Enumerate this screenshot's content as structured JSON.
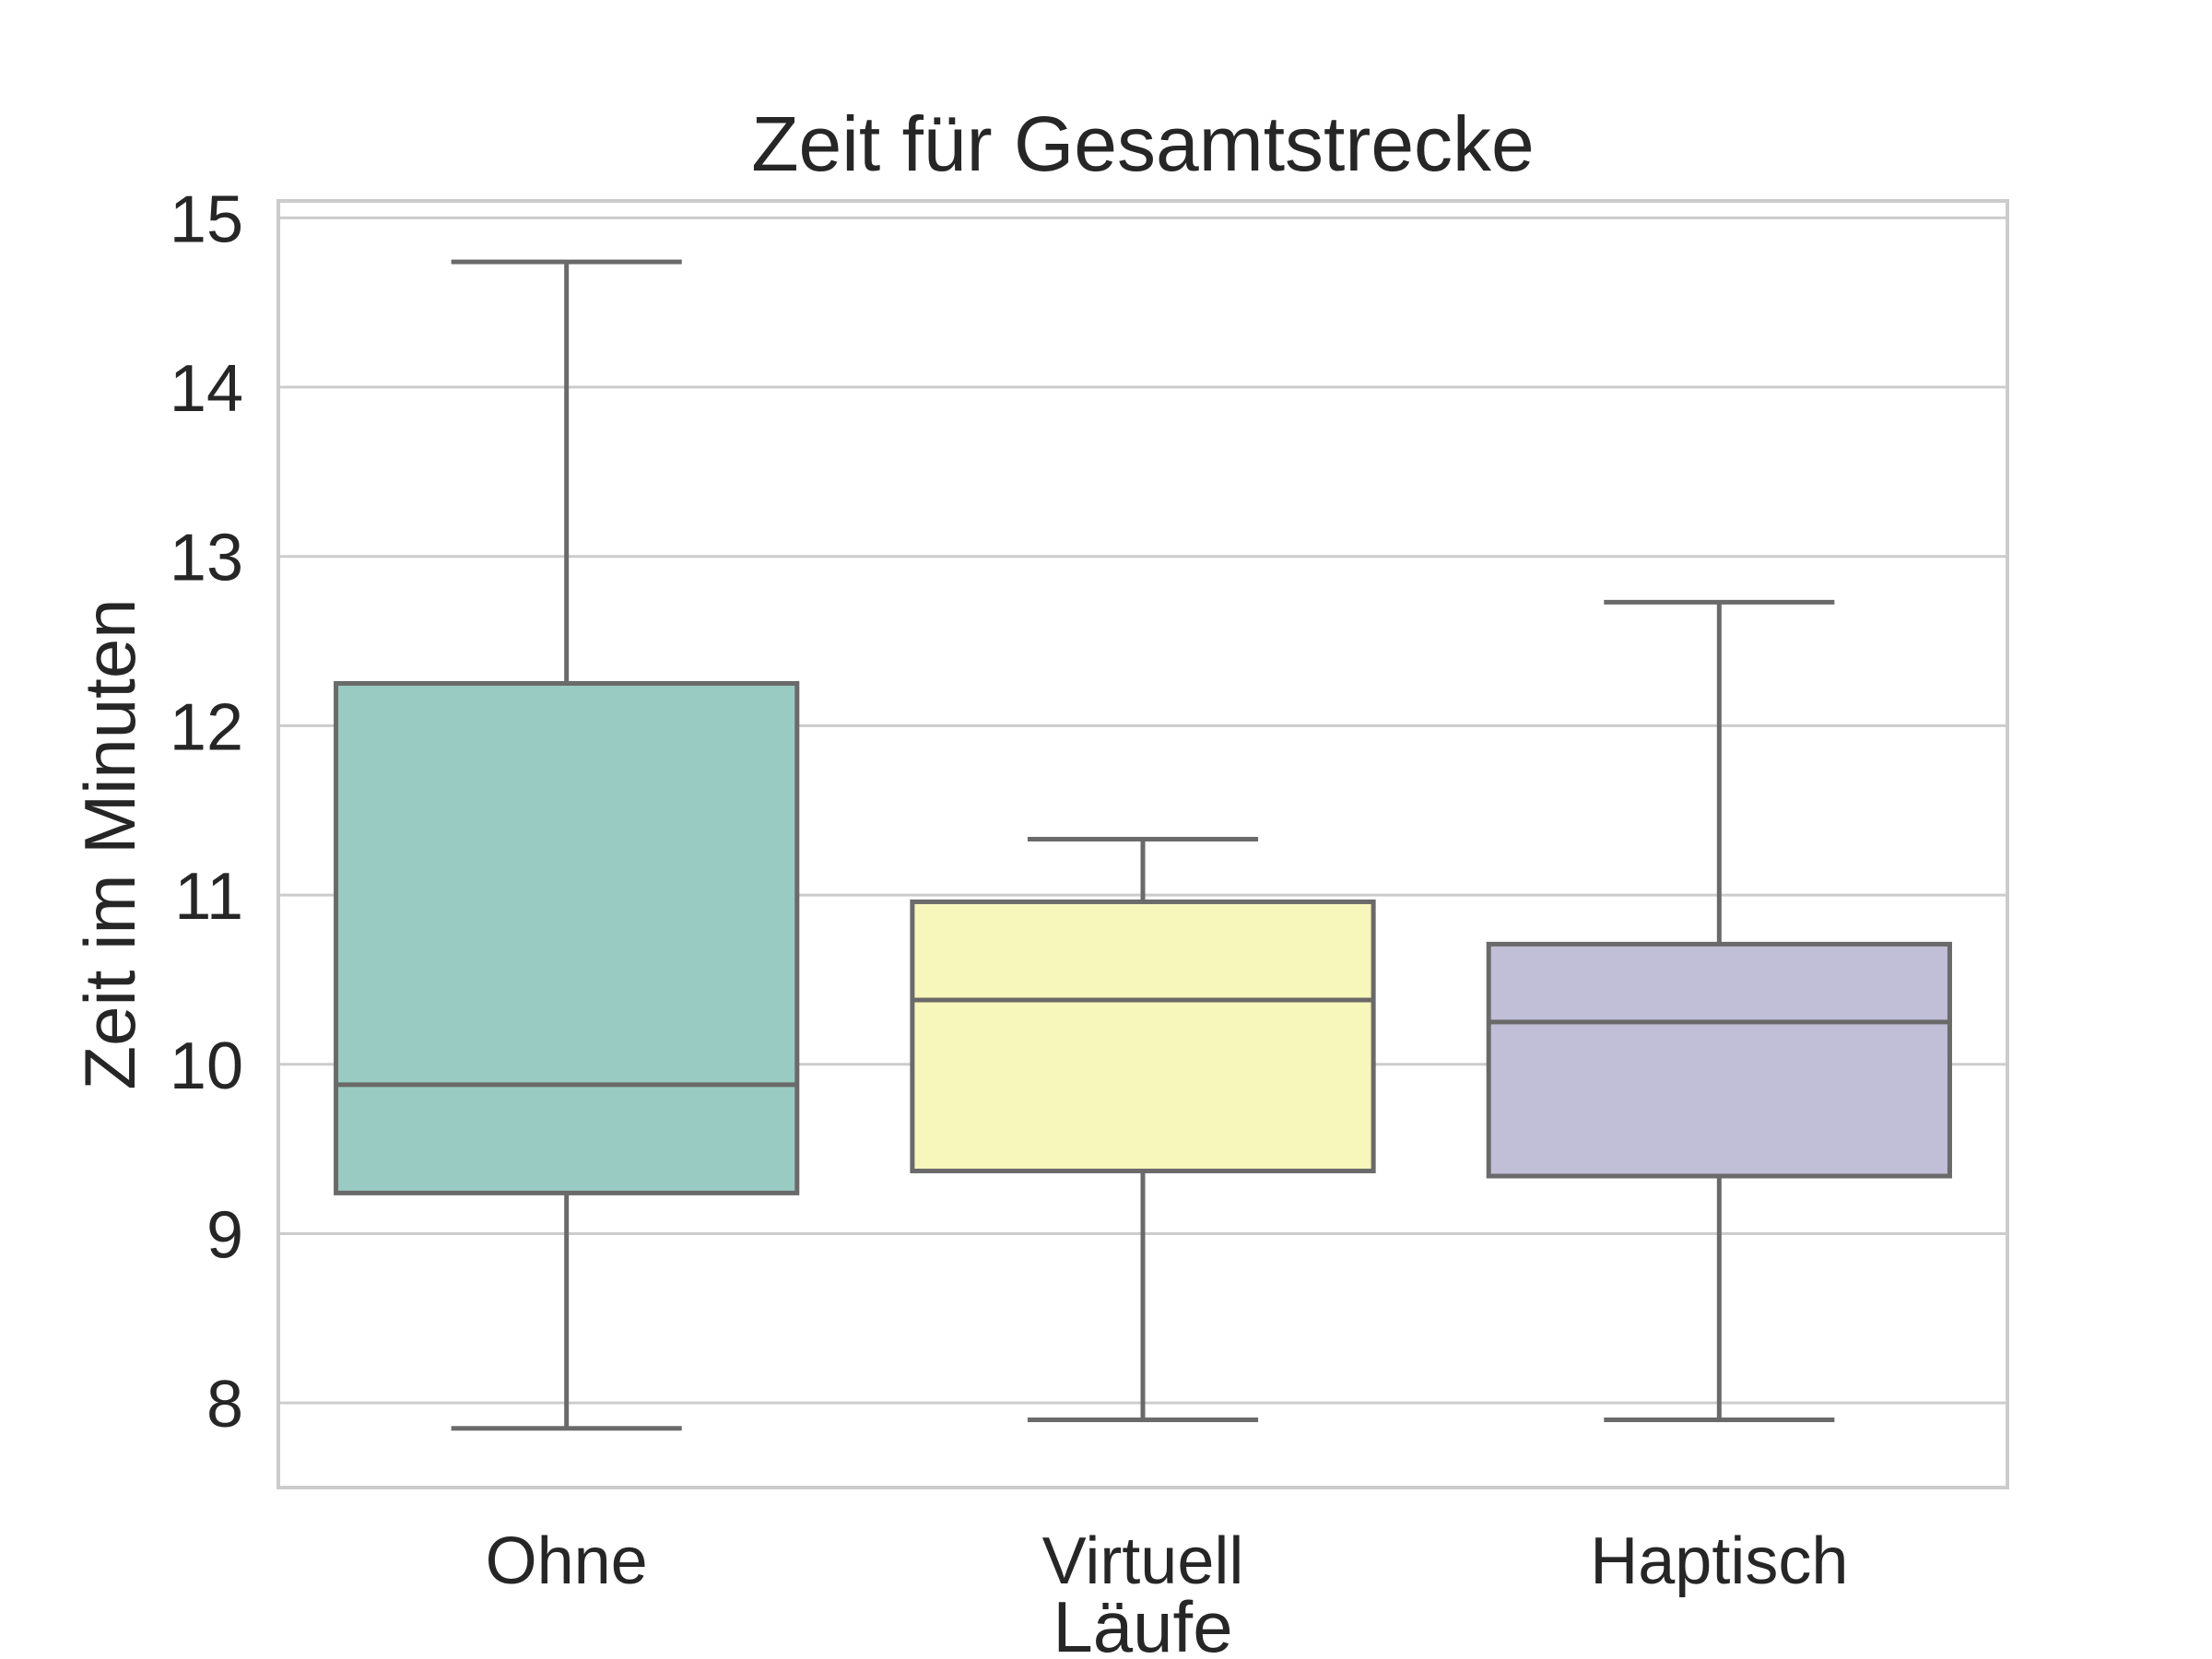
{
  "chart_data": {
    "type": "box",
    "title": "Zeit für Gesamtstrecke",
    "xlabel": "Läufe",
    "ylabel": "Zeit im Minuten",
    "ylim": [
      7.5,
      15.1
    ],
    "yticks": [
      8,
      9,
      10,
      11,
      12,
      13,
      14,
      15
    ],
    "grid": "horizontal",
    "categories": [
      "Ohne",
      "Virtuell",
      "Haptisch"
    ],
    "boxes": [
      {
        "category": "Ohne",
        "whisker_low": 7.85,
        "q1": 9.24,
        "median": 9.88,
        "q3": 12.25,
        "whisker_high": 14.74,
        "color": "#99cbc2"
      },
      {
        "category": "Virtuell",
        "whisker_low": 7.9,
        "q1": 9.37,
        "median": 10.38,
        "q3": 10.96,
        "whisker_high": 11.33,
        "color": "#f7f6bb"
      },
      {
        "category": "Haptisch",
        "whisker_low": 7.9,
        "q1": 9.34,
        "median": 10.25,
        "q3": 10.71,
        "whisker_high": 12.73,
        "color": "#c1bed7"
      }
    ],
    "colors": {
      "line": "#6a6a6a",
      "grid": "#cccccc",
      "frame": "#cccccc",
      "text": "#262626"
    }
  }
}
